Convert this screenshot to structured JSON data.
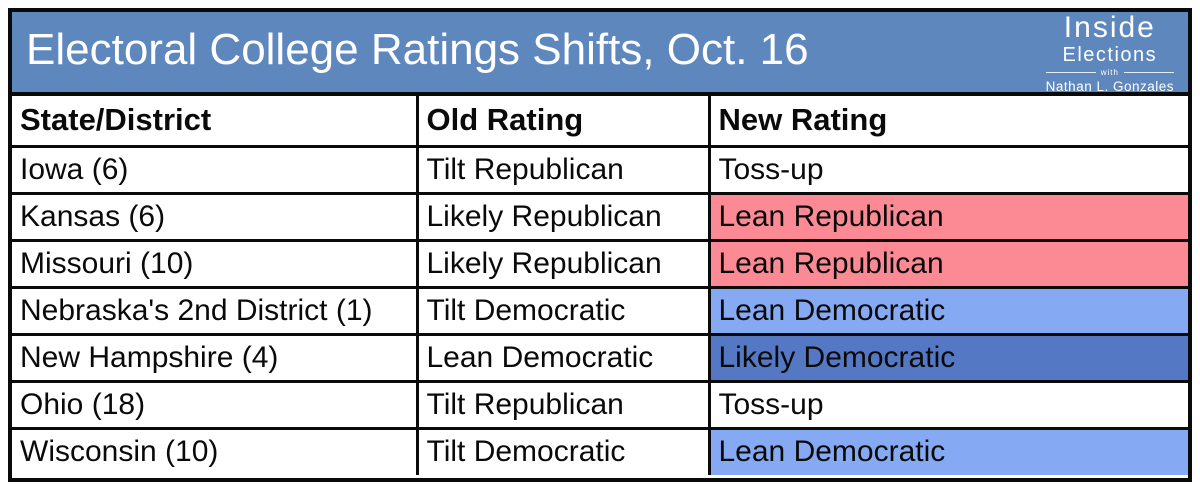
{
  "banner": {
    "title": "Electoral College Ratings Shifts, Oct. 16",
    "background": "#5E87BE",
    "logo": {
      "line1": "Inside",
      "line2": "Elections",
      "with_label": "with",
      "line3": "Nathan L. Gonzales"
    }
  },
  "colors": {
    "lean_republican_bg": "#FC8A94",
    "lean_democratic_bg": "#86A9F4",
    "likely_democratic_bg": "#5478C4",
    "neutral_bg": "#FFFFFF",
    "border": "#0A0A0A"
  },
  "table": {
    "columns": [
      "State/District",
      "Old Rating",
      "New Rating"
    ],
    "rows": [
      {
        "state": "Iowa (6)",
        "old_rating": "Tilt Republican",
        "new_rating": "Toss-up",
        "new_bg": "#FFFFFF"
      },
      {
        "state": "Kansas (6)",
        "old_rating": "Likely Republican",
        "new_rating": "Lean Republican",
        "new_bg": "#FC8A94"
      },
      {
        "state": "Missouri (10)",
        "old_rating": "Likely Republican",
        "new_rating": "Lean Republican",
        "new_bg": "#FC8A94"
      },
      {
        "state": "Nebraska's 2nd District (1)",
        "old_rating": "Tilt Democratic",
        "new_rating": "Lean Democratic",
        "new_bg": "#86A9F4"
      },
      {
        "state": "New Hampshire (4)",
        "old_rating": "Lean Democratic",
        "new_rating": "Likely Democratic",
        "new_bg": "#5478C4"
      },
      {
        "state": "Ohio (18)",
        "old_rating": "Tilt Republican",
        "new_rating": "Toss-up",
        "new_bg": "#FFFFFF"
      },
      {
        "state": "Wisconsin (10)",
        "old_rating": "Tilt Democratic",
        "new_rating": "Lean Democratic",
        "new_bg": "#86A9F4"
      }
    ]
  }
}
